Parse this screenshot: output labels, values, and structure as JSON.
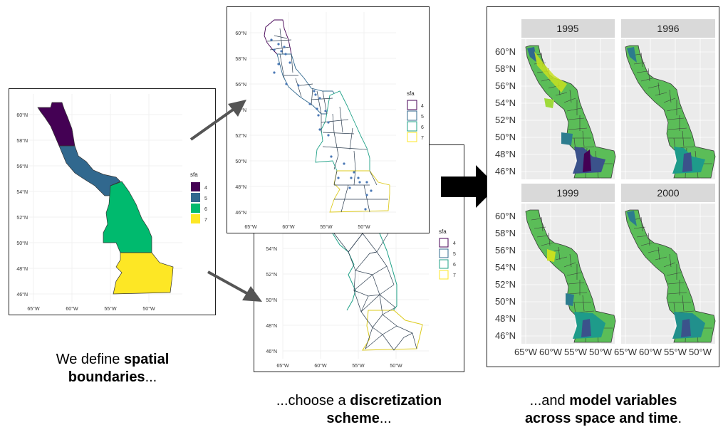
{
  "panel1": {
    "lat_ticks": [
      "60°N",
      "58°N",
      "56°N",
      "54°N",
      "52°N",
      "50°N",
      "48°N",
      "46°N"
    ],
    "lon_ticks": [
      "65°W",
      "60°W",
      "55°W",
      "50°W"
    ],
    "legend_title": "sfa",
    "legend": [
      {
        "label": "4",
        "color": "#440154"
      },
      {
        "label": "5",
        "color": "#31688E"
      },
      {
        "label": "6",
        "color": "#00BA6E"
      },
      {
        "label": "7",
        "color": "#FDE725"
      }
    ]
  },
  "panel2": {
    "lat_ticks": [
      "60°N",
      "58°N",
      "56°N",
      "54°N",
      "52°N",
      "50°N",
      "48°N",
      "46°N"
    ],
    "lon_ticks": [
      "65°W",
      "60°W",
      "55°W",
      "50°W"
    ],
    "legend_title": "sfa",
    "legend": [
      {
        "label": "4",
        "color": "#440154"
      },
      {
        "label": "5",
        "color": "#31688E"
      },
      {
        "label": "6",
        "color": "#1FA187"
      },
      {
        "label": "7",
        "color": "#FDE725"
      }
    ]
  },
  "panel3": {
    "lat_ticks": [
      "54°N",
      "52°N",
      "50°N",
      "48°N",
      "46°N"
    ],
    "lon_ticks": [
      "65°W",
      "60°W",
      "55°W",
      "50°W"
    ],
    "legend_title": "sfa",
    "legend": [
      {
        "label": "4",
        "color": "#440154"
      },
      {
        "label": "5",
        "color": "#31688E"
      },
      {
        "label": "6",
        "color": "#1FA187"
      },
      {
        "label": "7",
        "color": "#FDE725"
      }
    ]
  },
  "panel4": {
    "facets": [
      "1995",
      "1996",
      "1999",
      "2000"
    ],
    "lat_ticks": [
      "60°N",
      "58°N",
      "56°N",
      "54°N",
      "52°N",
      "50°N",
      "48°N",
      "46°N"
    ],
    "lon_ticks": [
      "65°W",
      "60°W",
      "55°W",
      "50°W"
    ]
  },
  "captions": {
    "c1_pre": "We define ",
    "c1_bold1": "spatial",
    "c1_bold2": "boundaries",
    "c1_post": "...",
    "c2_pre": "...choose a ",
    "c2_bold1": "discretization",
    "c2_bold2": "scheme",
    "c2_post": "...",
    "c3_pre": "...and ",
    "c3_bold1": "model variables",
    "c3_bold2": "across space and time",
    "c3_post": "."
  },
  "colors": {
    "sfa4": "#440154",
    "sfa5": "#31688E",
    "sfa6": "#00BA6E",
    "sfa7": "#FDE725",
    "arrow": "#555555",
    "big_arrow": "#000000"
  }
}
